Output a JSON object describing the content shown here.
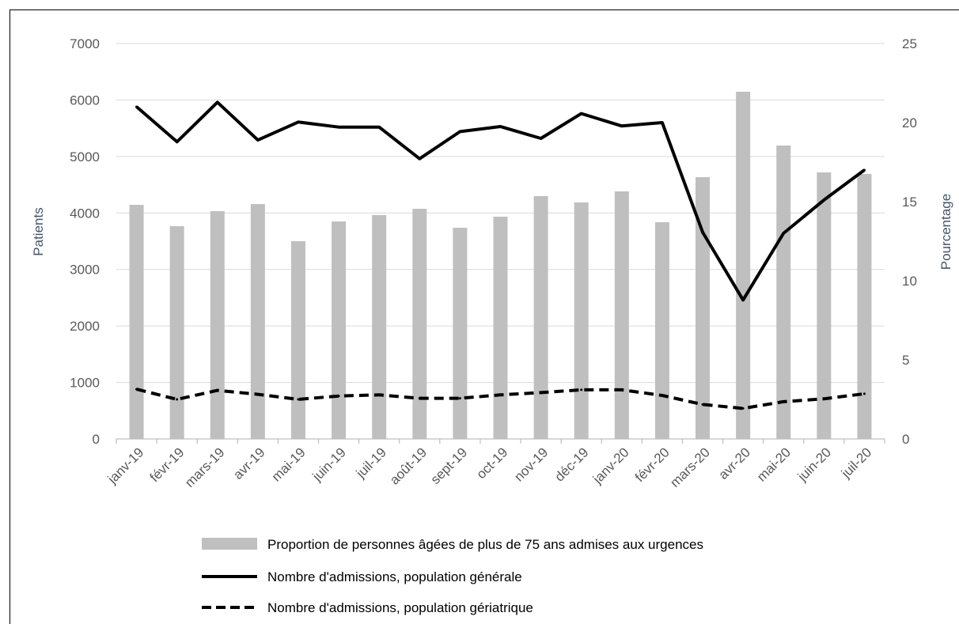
{
  "chart_data": {
    "type": "bar",
    "categories": [
      "janv-19",
      "févr-19",
      "mars-19",
      "avr-19",
      "mai-19",
      "juin-19",
      "juil-19",
      "août-19",
      "sept-19",
      "oct-19",
      "nov-19",
      "déc-19",
      "janv-20",
      "févr-20",
      "mars-20",
      "avr-20",
      "mai-20",
      "juin-20",
      "juil-20"
    ],
    "ylabel": "Patients",
    "y2label": "Pourcentage",
    "ylim": [
      0,
      7000
    ],
    "y2lim": [
      0,
      25
    ],
    "yticks": [
      "0",
      "1000",
      "2000",
      "3000",
      "4000",
      "5000",
      "6000",
      "7000"
    ],
    "y2ticks": [
      "0",
      "5",
      "10",
      "15",
      "20",
      "25"
    ],
    "grid": true,
    "legend_position": "bottom",
    "series": [
      {
        "name": "Proportion de personnes âgées de plus de 75 ans admises aux urgences",
        "type": "bar",
        "axis": "right",
        "color": "#bfbfbf",
        "values": [
          14.8,
          13.45,
          14.4,
          14.85,
          12.5,
          13.75,
          14.15,
          14.55,
          13.35,
          14.05,
          15.35,
          14.95,
          15.65,
          13.7,
          16.55,
          21.95,
          18.55,
          16.85,
          16.75
        ]
      },
      {
        "name": "Nombre d'admissions, population générale",
        "type": "line",
        "style": "solid",
        "axis": "left",
        "color": "#000000",
        "values": [
          5880,
          5260,
          5960,
          5290,
          5610,
          5520,
          5520,
          4960,
          5440,
          5530,
          5320,
          5760,
          5540,
          5600,
          3660,
          2460,
          3640,
          4230,
          4760
        ]
      },
      {
        "name": "Nombre d'admissions, population gériatrique",
        "type": "line",
        "style": "dashed",
        "axis": "left",
        "color": "#000000",
        "values": [
          880,
          700,
          860,
          790,
          700,
          760,
          780,
          720,
          720,
          780,
          820,
          870,
          870,
          770,
          610,
          540,
          660,
          710,
          800
        ]
      }
    ]
  }
}
